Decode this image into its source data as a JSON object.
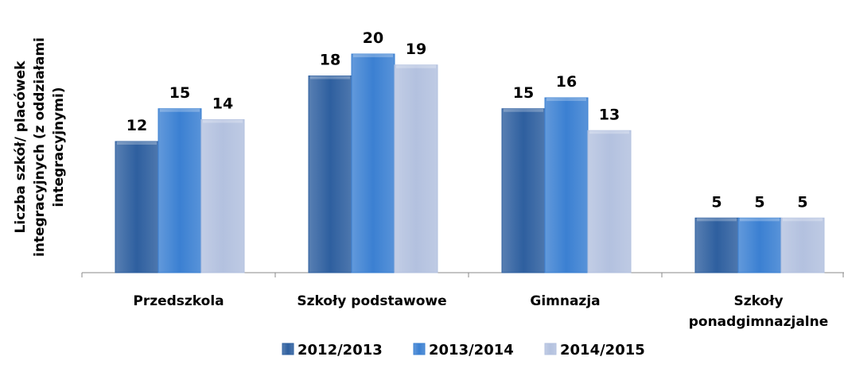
{
  "chart_data": {
    "type": "bar",
    "ylabel": [
      "Liczba szkół/ placówek",
      "integracyjnych (z oddziałami",
      "integracyjnymi)"
    ],
    "categories": [
      "Przedszkola",
      "Szkoły podstawowe",
      "Gimnazja",
      "Szkoły ponadgimnazjalne"
    ],
    "series": [
      {
        "name": "2012/2013",
        "color": "#2e5f9f",
        "values": [
          12,
          18,
          15,
          5
        ]
      },
      {
        "name": "2013/2014",
        "color": "#3b80d2",
        "values": [
          15,
          20,
          16,
          5
        ]
      },
      {
        "name": "2014/2015",
        "color": "#b3c1df",
        "values": [
          14,
          19,
          13,
          5
        ]
      }
    ]
  }
}
